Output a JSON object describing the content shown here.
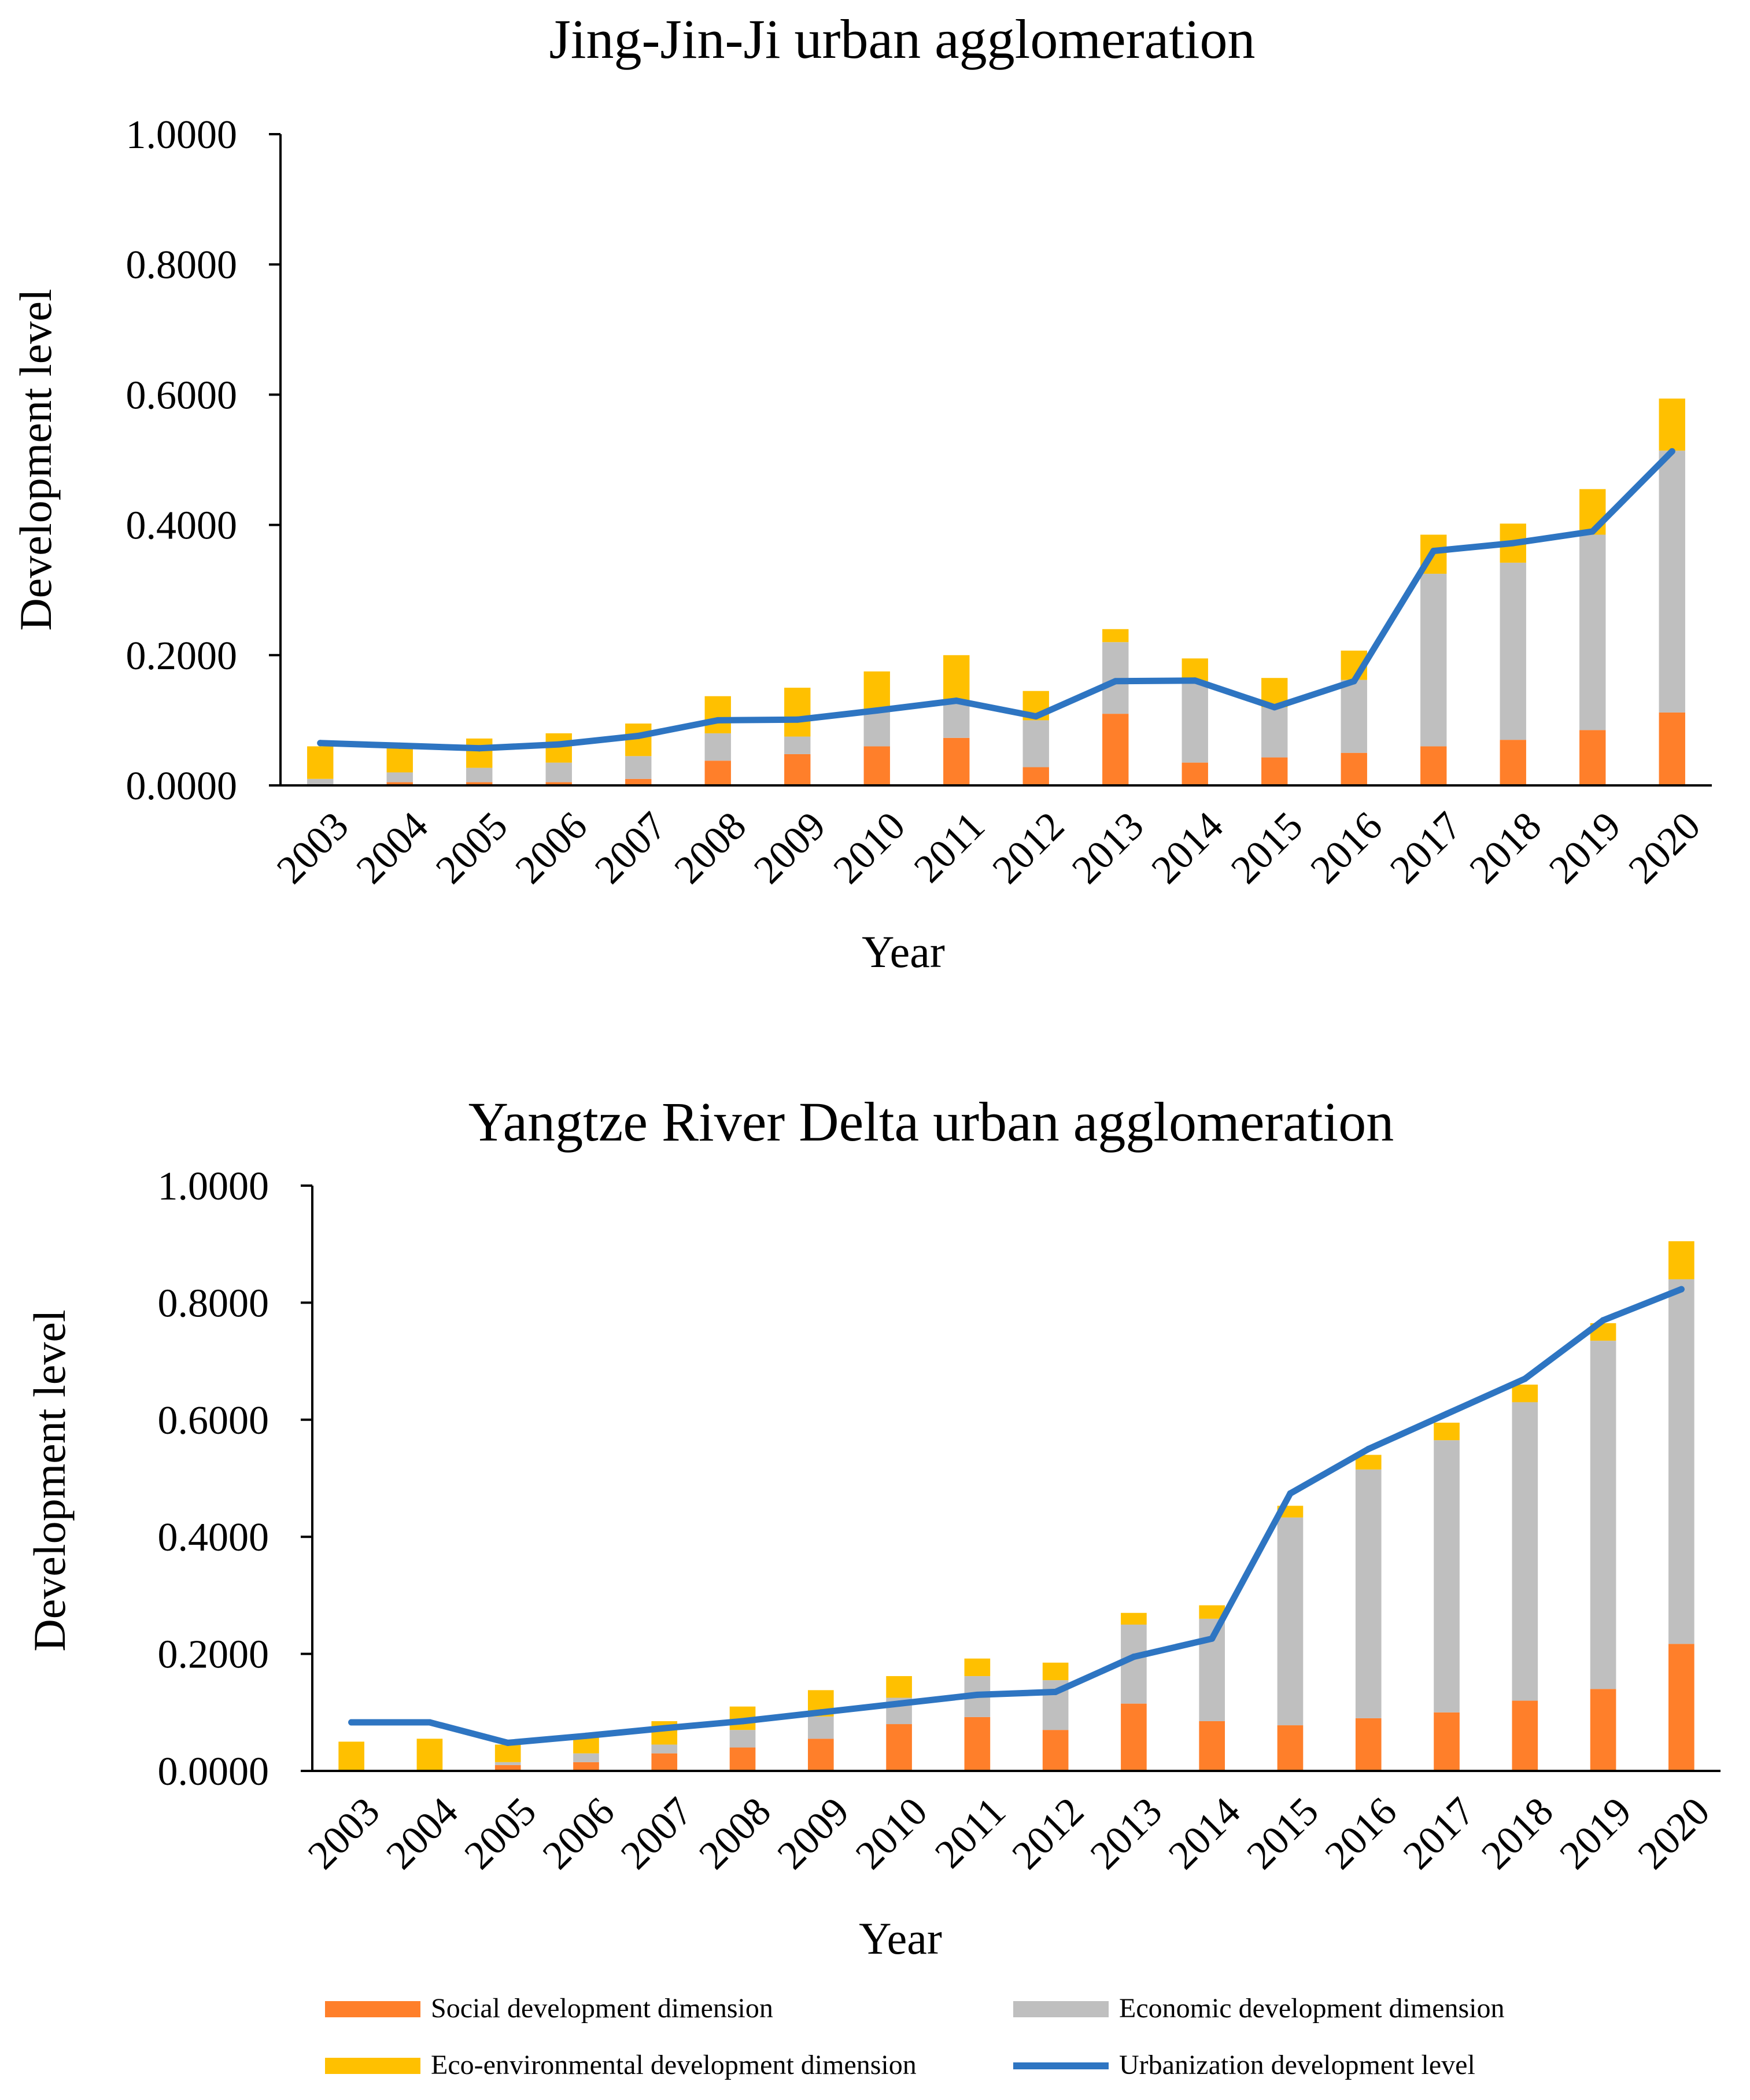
{
  "colors": {
    "social": "#FF7F2A",
    "economic": "#BFBFBF",
    "eco": "#FFC000",
    "line": "#2E75C2"
  },
  "chart_data": [
    {
      "type": "bar",
      "stacked": true,
      "title": "Jing-Jin-Ji urban agglomeration",
      "xlabel": "Year",
      "ylabel": "Development level",
      "ylim": [
        0,
        1
      ],
      "yticks": [
        "0.0000",
        "0.2000",
        "0.4000",
        "0.6000",
        "0.8000",
        "1.0000"
      ],
      "categories": [
        "2003",
        "2004",
        "2005",
        "2006",
        "2007",
        "2008",
        "2009",
        "2010",
        "2011",
        "2012",
        "2013",
        "2014",
        "2015",
        "2016",
        "2017",
        "2018",
        "2019",
        "2020"
      ],
      "series": [
        {
          "name": "Social development dimension",
          "kind": "bar",
          "values": [
            0.0,
            0.005,
            0.005,
            0.005,
            0.01,
            0.038,
            0.048,
            0.06,
            0.073,
            0.028,
            0.11,
            0.035,
            0.043,
            0.05,
            0.06,
            0.07,
            0.085,
            0.112
          ]
        },
        {
          "name": "Economic development dimension",
          "kind": "bar",
          "values": [
            0.01,
            0.015,
            0.022,
            0.03,
            0.035,
            0.042,
            0.027,
            0.055,
            0.055,
            0.072,
            0.11,
            0.125,
            0.077,
            0.112,
            0.265,
            0.272,
            0.3,
            0.402
          ]
        },
        {
          "name": "Eco-environmental development dimension",
          "kind": "bar",
          "values": [
            0.05,
            0.04,
            0.045,
            0.045,
            0.05,
            0.057,
            0.075,
            0.06,
            0.072,
            0.045,
            0.02,
            0.035,
            0.045,
            0.045,
            0.06,
            0.06,
            0.07,
            0.08
          ]
        },
        {
          "name": "Urbanization development level",
          "kind": "line",
          "values": [
            0.065,
            0.061,
            0.057,
            0.063,
            0.076,
            0.1,
            0.101,
            0.115,
            0.13,
            0.106,
            0.16,
            0.161,
            0.12,
            0.16,
            0.36,
            0.372,
            0.39,
            0.513
          ]
        }
      ]
    },
    {
      "type": "bar",
      "stacked": true,
      "title": "Yangtze River Delta urban agglomeration",
      "xlabel": "Year",
      "ylabel": "Development level",
      "ylim": [
        0,
        1
      ],
      "yticks": [
        "0.0000",
        "0.2000",
        "0.4000",
        "0.6000",
        "0.8000",
        "1.0000"
      ],
      "categories": [
        "2003",
        "2004",
        "2005",
        "2006",
        "2007",
        "2008",
        "2009",
        "2010",
        "2011",
        "2012",
        "2013",
        "2014",
        "2015",
        "2016",
        "2017",
        "2018",
        "2019",
        "2020"
      ],
      "series": [
        {
          "name": "Social development dimension",
          "kind": "bar",
          "values": [
            0.0,
            0.0,
            0.01,
            0.015,
            0.03,
            0.04,
            0.055,
            0.08,
            0.092,
            0.07,
            0.115,
            0.085,
            0.078,
            0.09,
            0.1,
            0.12,
            0.14,
            0.217
          ]
        },
        {
          "name": "Economic development dimension",
          "kind": "bar",
          "values": [
            0.0,
            0.0,
            0.005,
            0.015,
            0.015,
            0.03,
            0.038,
            0.045,
            0.07,
            0.085,
            0.135,
            0.175,
            0.355,
            0.425,
            0.465,
            0.51,
            0.595,
            0.623
          ]
        },
        {
          "name": "Eco-environmental development dimension",
          "kind": "bar",
          "values": [
            0.05,
            0.055,
            0.03,
            0.03,
            0.04,
            0.04,
            0.045,
            0.037,
            0.03,
            0.03,
            0.02,
            0.023,
            0.02,
            0.025,
            0.03,
            0.03,
            0.03,
            0.065
          ]
        },
        {
          "name": "Urbanization development level",
          "kind": "line",
          "values": [
            0.083,
            0.083,
            0.048,
            0.06,
            0.073,
            0.085,
            0.1,
            0.115,
            0.13,
            0.135,
            0.195,
            0.226,
            0.474,
            0.55,
            0.61,
            0.67,
            0.77,
            0.823
          ]
        }
      ]
    }
  ],
  "legend": {
    "items": [
      {
        "label": "Social development dimension",
        "kind": "bar",
        "color_key": "social"
      },
      {
        "label": "Economic development dimension",
        "kind": "bar",
        "color_key": "economic"
      },
      {
        "label": "Eco-environmental development dimension",
        "kind": "bar",
        "color_key": "eco"
      },
      {
        "label": "Urbanization development level",
        "kind": "line",
        "color_key": "line"
      }
    ]
  }
}
